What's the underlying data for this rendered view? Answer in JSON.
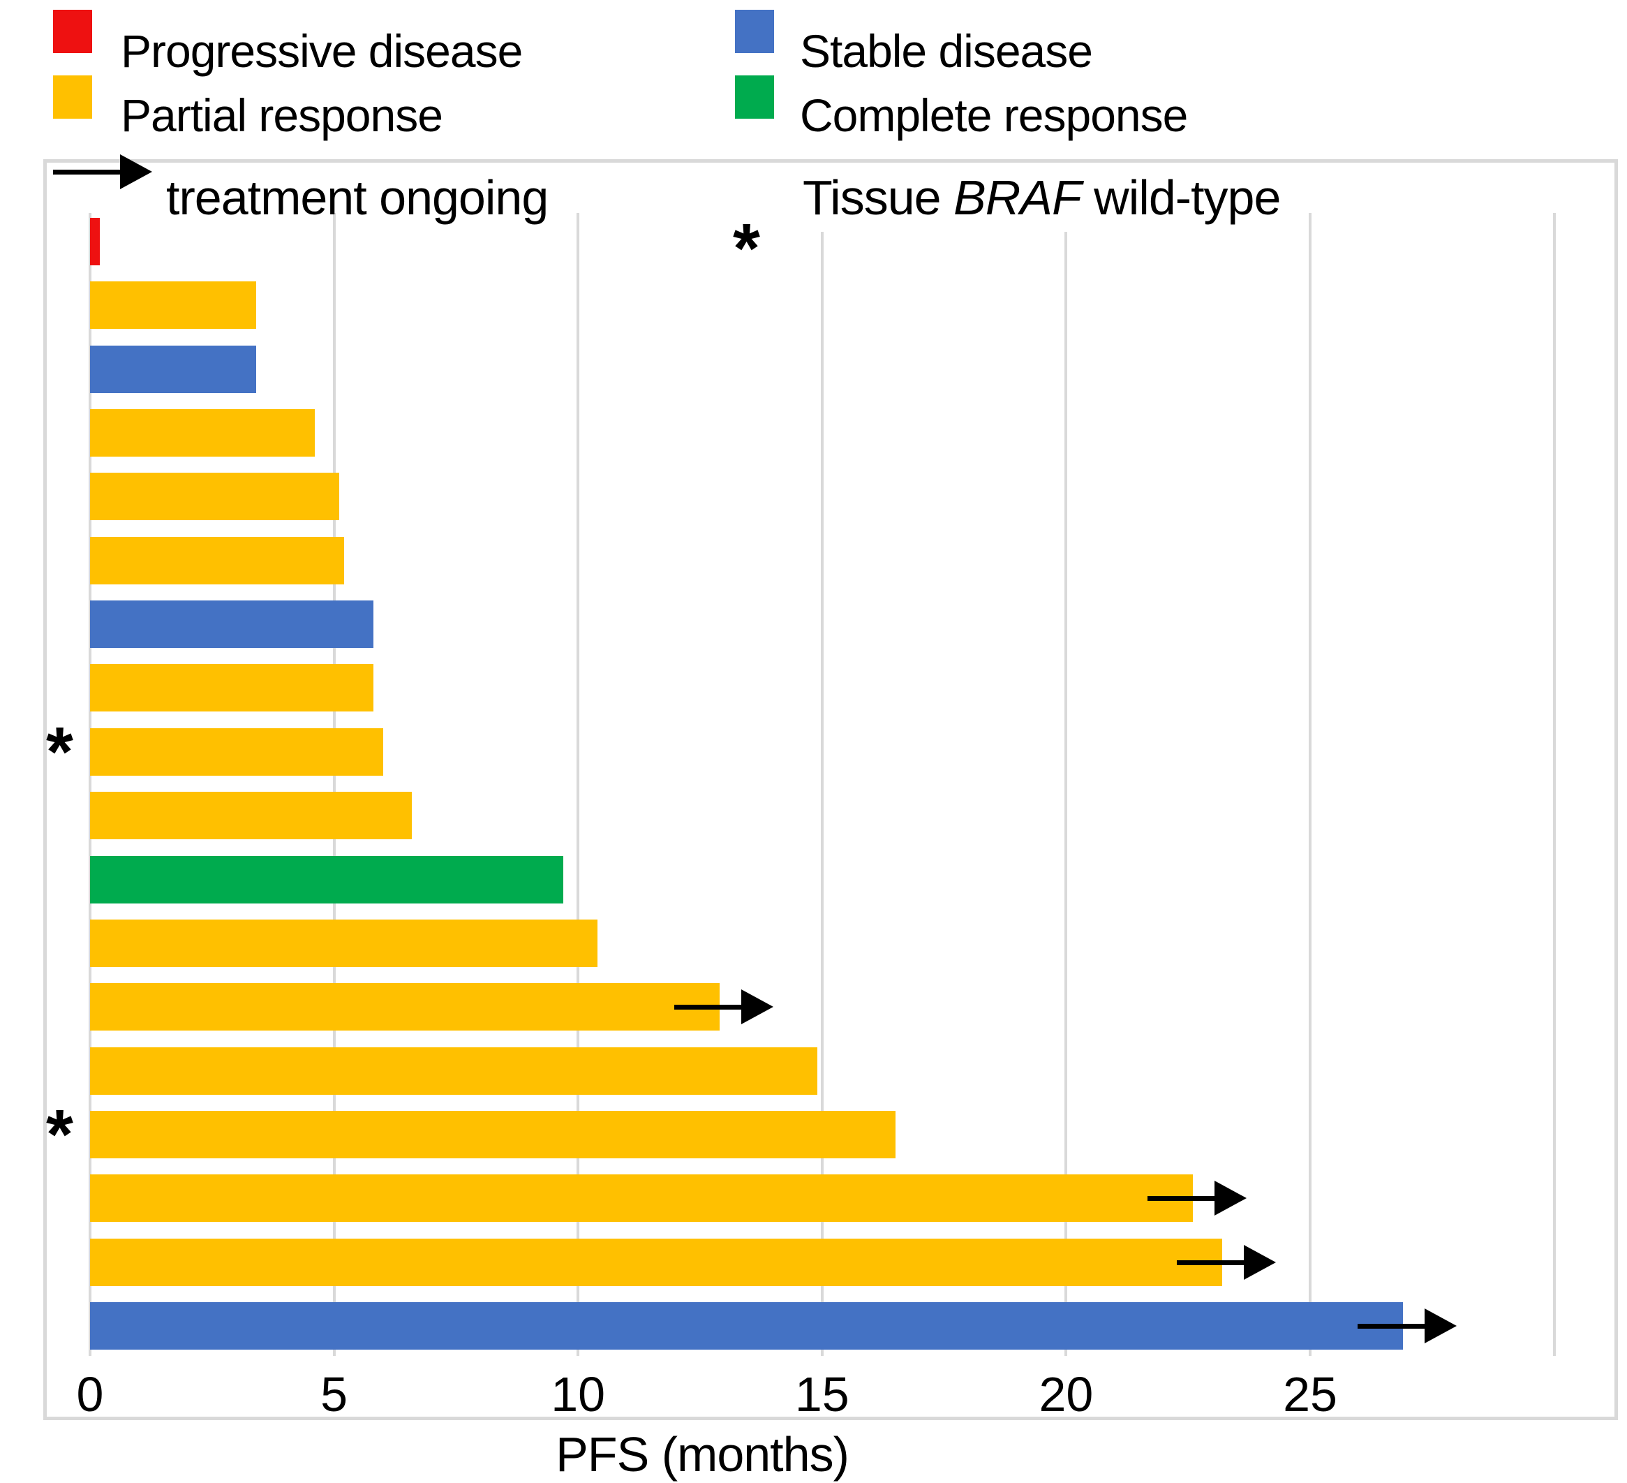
{
  "legend": {
    "items": [
      {
        "label": "Progressive disease",
        "color": "#EE1111"
      },
      {
        "label": "Partial response",
        "color": "#FFC000"
      },
      {
        "label": "Stable disease",
        "color": "#4472C4"
      },
      {
        "label": "Complete response",
        "color": "#00AB4E"
      }
    ],
    "arrow_label": "treatment ongoing",
    "braf_note": {
      "symbol": "*",
      "prefix": "Tissue ",
      "italic": "BRAF",
      "suffix": " wild-type"
    }
  },
  "chart_data": {
    "type": "bar",
    "orientation": "horizontal",
    "title": "",
    "xlabel": "PFS (months)",
    "ylabel": "",
    "xlim": [
      0,
      31.3
    ],
    "x_ticks": [
      0,
      5,
      10,
      15,
      20,
      25
    ],
    "gridline_months": [
      0,
      5,
      10,
      15,
      20,
      25,
      30
    ],
    "grid": true,
    "legend_position": "top",
    "bars": [
      {
        "patient": 1,
        "pfs_months": 0.2,
        "response": "Progressive disease",
        "treatment_ongoing": false,
        "braf_wild_type": false
      },
      {
        "patient": 2,
        "pfs_months": 3.4,
        "response": "Partial response",
        "treatment_ongoing": false,
        "braf_wild_type": false
      },
      {
        "patient": 3,
        "pfs_months": 3.4,
        "response": "Stable disease",
        "treatment_ongoing": false,
        "braf_wild_type": false
      },
      {
        "patient": 4,
        "pfs_months": 4.6,
        "response": "Partial response",
        "treatment_ongoing": false,
        "braf_wild_type": false
      },
      {
        "patient": 5,
        "pfs_months": 5.1,
        "response": "Partial response",
        "treatment_ongoing": false,
        "braf_wild_type": false
      },
      {
        "patient": 6,
        "pfs_months": 5.2,
        "response": "Partial response",
        "treatment_ongoing": false,
        "braf_wild_type": false
      },
      {
        "patient": 7,
        "pfs_months": 5.8,
        "response": "Stable disease",
        "treatment_ongoing": false,
        "braf_wild_type": false
      },
      {
        "patient": 8,
        "pfs_months": 5.8,
        "response": "Partial response",
        "treatment_ongoing": false,
        "braf_wild_type": false
      },
      {
        "patient": 9,
        "pfs_months": 6.0,
        "response": "Partial response",
        "treatment_ongoing": false,
        "braf_wild_type": true
      },
      {
        "patient": 10,
        "pfs_months": 6.6,
        "response": "Partial response",
        "treatment_ongoing": false,
        "braf_wild_type": false
      },
      {
        "patient": 11,
        "pfs_months": 9.7,
        "response": "Complete response",
        "treatment_ongoing": false,
        "braf_wild_type": false
      },
      {
        "patient": 12,
        "pfs_months": 10.4,
        "response": "Partial response",
        "treatment_ongoing": false,
        "braf_wild_type": false
      },
      {
        "patient": 13,
        "pfs_months": 12.9,
        "response": "Partial response",
        "treatment_ongoing": true,
        "braf_wild_type": false
      },
      {
        "patient": 14,
        "pfs_months": 14.9,
        "response": "Partial response",
        "treatment_ongoing": false,
        "braf_wild_type": false
      },
      {
        "patient": 15,
        "pfs_months": 16.5,
        "response": "Partial response",
        "treatment_ongoing": false,
        "braf_wild_type": true
      },
      {
        "patient": 16,
        "pfs_months": 22.6,
        "response": "Partial response",
        "treatment_ongoing": true,
        "braf_wild_type": false
      },
      {
        "patient": 17,
        "pfs_months": 23.2,
        "response": "Partial response",
        "treatment_ongoing": true,
        "braf_wild_type": false
      },
      {
        "patient": 18,
        "pfs_months": 26.9,
        "response": "Stable disease",
        "treatment_ongoing": true,
        "braf_wild_type": false
      }
    ]
  },
  "colors": {
    "gridline": "#D9D9D9",
    "plot_border": "#D9D9D9",
    "arrow": "#000000",
    "text": "#000000"
  }
}
